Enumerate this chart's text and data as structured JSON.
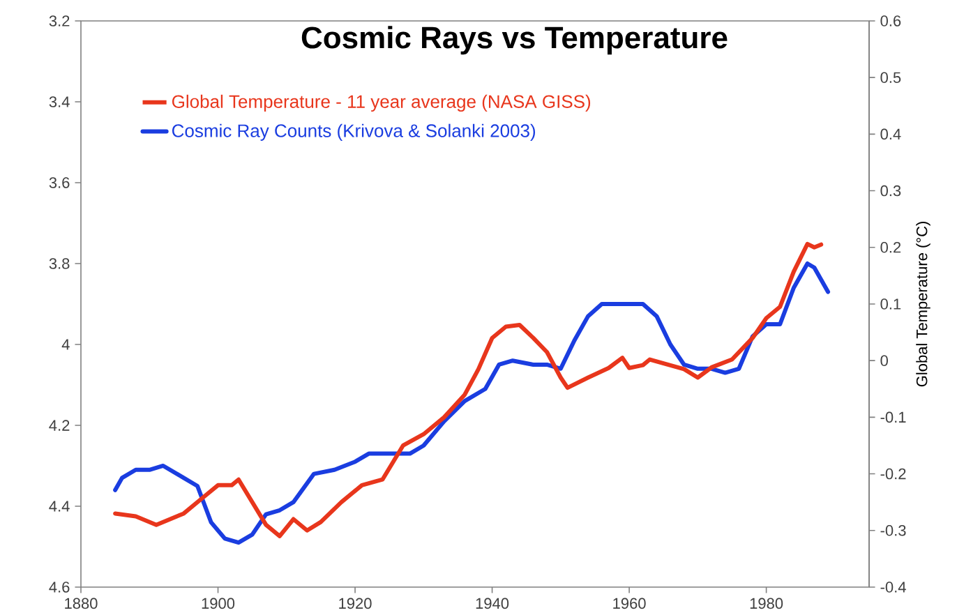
{
  "chart_data": {
    "type": "line",
    "title": "Cosmic Rays vs Temperature",
    "y2label": "Global Temperature (°C)",
    "xlim": [
      1880,
      1995
    ],
    "xticks": [
      1880,
      1900,
      1920,
      1940,
      1960,
      1980
    ],
    "ylim": [
      4.6,
      3.2
    ],
    "yticks": [
      3.2,
      3.4,
      3.6,
      3.8,
      4,
      4.2,
      4.4,
      4.6
    ],
    "y2lim": [
      -0.4,
      0.6
    ],
    "y2ticks": [
      -0.4,
      -0.3,
      -0.2,
      -0.1,
      0,
      0.1,
      0.2,
      0.3,
      0.4,
      0.5,
      0.6
    ],
    "legend": "top left",
    "line_style": "solid",
    "series": [
      {
        "name": "Global Temperature - 11 year average (NASA GISS)",
        "color": "#e8361c",
        "axis": "y2",
        "x": [
          1885,
          1888,
          1891,
          1895,
          1898,
          1900,
          1902,
          1903,
          1905,
          1907,
          1909,
          1911,
          1913,
          1915,
          1918,
          1921,
          1924,
          1927,
          1930,
          1933,
          1936,
          1938,
          1940,
          1942,
          1944,
          1946,
          1948,
          1950,
          1951,
          1954,
          1957,
          1959,
          1960,
          1962,
          1963,
          1965,
          1968,
          1970,
          1972,
          1975,
          1978,
          1980,
          1982,
          1984,
          1986,
          1987,
          1988
        ],
        "values": [
          -0.27,
          -0.275,
          -0.29,
          -0.27,
          -0.24,
          -0.22,
          -0.22,
          -0.21,
          -0.25,
          -0.29,
          -0.31,
          -0.28,
          -0.3,
          -0.285,
          -0.25,
          -0.22,
          -0.21,
          -0.15,
          -0.13,
          -0.1,
          -0.06,
          -0.015,
          0.04,
          0.06,
          0.063,
          0.04,
          0.015,
          -0.03,
          -0.048,
          -0.03,
          -0.013,
          0.005,
          -0.013,
          -0.008,
          0.002,
          -0.005,
          -0.015,
          -0.03,
          -0.012,
          0.002,
          0.04,
          0.075,
          0.095,
          0.157,
          0.206,
          0.2,
          0.205
        ]
      },
      {
        "name": "Cosmic Ray Counts (Krivova & Solanki 2003)",
        "color": "#1a3de0",
        "axis": "y",
        "x": [
          1885,
          1886,
          1888,
          1890,
          1892,
          1895,
          1897,
          1899,
          1901,
          1903,
          1905,
          1907,
          1909,
          1911,
          1914,
          1917,
          1920,
          1922,
          1925,
          1928,
          1930,
          1933,
          1936,
          1939,
          1941,
          1943,
          1946,
          1948,
          1950,
          1952,
          1954,
          1956,
          1958,
          1960,
          1962,
          1964,
          1966,
          1968,
          1970,
          1972,
          1974,
          1976,
          1978,
          1980,
          1982,
          1984,
          1986,
          1987,
          1989
        ],
        "values": [
          4.36,
          4.33,
          4.31,
          4.31,
          4.3,
          4.33,
          4.35,
          4.44,
          4.48,
          4.49,
          4.47,
          4.42,
          4.41,
          4.39,
          4.32,
          4.31,
          4.29,
          4.27,
          4.27,
          4.27,
          4.25,
          4.19,
          4.14,
          4.11,
          4.05,
          4.04,
          4.05,
          4.05,
          4.06,
          3.99,
          3.93,
          3.9,
          3.9,
          3.9,
          3.9,
          3.93,
          4,
          4.05,
          4.06,
          4.06,
          4.07,
          4.06,
          3.98,
          3.95,
          3.95,
          3.86,
          3.8,
          3.81,
          3.87
        ]
      }
    ]
  }
}
